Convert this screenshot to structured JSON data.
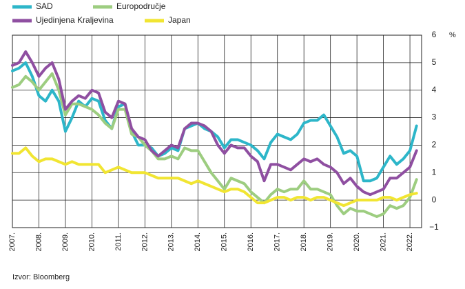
{
  "chart_data": {
    "type": "line",
    "source": "Izvor: Bloomberg",
    "unit": "%",
    "x": [
      2007,
      2007.25,
      2007.5,
      2007.75,
      2008,
      2008.25,
      2008.5,
      2008.75,
      2009,
      2009.25,
      2009.5,
      2009.75,
      2010,
      2010.25,
      2010.5,
      2010.75,
      2011,
      2011.25,
      2011.5,
      2011.75,
      2012,
      2012.25,
      2012.5,
      2012.75,
      2013,
      2013.25,
      2013.5,
      2013.75,
      2014,
      2014.25,
      2014.5,
      2014.75,
      2015,
      2015.25,
      2015.5,
      2015.75,
      2016,
      2016.25,
      2016.5,
      2016.75,
      2017,
      2017.25,
      2017.5,
      2017.75,
      2018,
      2018.25,
      2018.5,
      2018.75,
      2019,
      2019.25,
      2019.5,
      2019.75,
      2020,
      2020.25,
      2020.5,
      2020.75,
      2021,
      2021.25,
      2021.5,
      2021.75,
      2022,
      2022.25
    ],
    "series": [
      {
        "name": "SAD",
        "color": "#2db6c9",
        "values": [
          4.7,
          4.8,
          5.0,
          4.5,
          3.8,
          3.6,
          4.0,
          3.6,
          2.5,
          3.0,
          3.6,
          3.4,
          3.7,
          3.6,
          2.9,
          2.6,
          3.4,
          3.5,
          2.5,
          2.0,
          2.0,
          1.9,
          1.6,
          1.7,
          1.9,
          1.8,
          2.6,
          2.7,
          2.8,
          2.6,
          2.5,
          2.3,
          1.9,
          2.2,
          2.2,
          2.1,
          2.0,
          1.8,
          1.5,
          2.1,
          2.4,
          2.3,
          2.2,
          2.4,
          2.8,
          2.9,
          2.9,
          3.1,
          2.7,
          2.3,
          1.7,
          1.8,
          1.6,
          0.7,
          0.7,
          0.8,
          1.2,
          1.6,
          1.3,
          1.5,
          1.8,
          2.7
        ]
      },
      {
        "name": "Europodručje",
        "color": "#9dcd80",
        "values": [
          4.1,
          4.2,
          4.5,
          4.3,
          4.0,
          4.3,
          4.6,
          4.0,
          3.1,
          3.5,
          3.5,
          3.4,
          3.3,
          3.1,
          2.8,
          2.6,
          3.3,
          3.3,
          2.4,
          2.3,
          2.0,
          1.8,
          1.5,
          1.5,
          1.6,
          1.5,
          1.9,
          1.8,
          1.8,
          1.4,
          1.0,
          0.7,
          0.4,
          0.8,
          0.7,
          0.6,
          0.3,
          0.1,
          -0.1,
          0.2,
          0.4,
          0.3,
          0.4,
          0.4,
          0.7,
          0.4,
          0.4,
          0.3,
          0.2,
          -0.2,
          -0.5,
          -0.3,
          -0.4,
          -0.4,
          -0.5,
          -0.6,
          -0.5,
          -0.2,
          -0.3,
          -0.2,
          0.1,
          0.75
        ]
      },
      {
        "name": "Ujedinjena Kraljevina",
        "color": "#8f4fa1",
        "values": [
          4.9,
          5.0,
          5.4,
          5.0,
          4.5,
          4.8,
          5.0,
          4.4,
          3.3,
          3.6,
          3.8,
          3.7,
          4.0,
          3.9,
          3.2,
          3.0,
          3.6,
          3.5,
          2.6,
          2.3,
          2.2,
          1.8,
          1.6,
          1.8,
          2.0,
          1.9,
          2.6,
          2.8,
          2.8,
          2.7,
          2.5,
          2.0,
          1.7,
          2.0,
          1.9,
          1.9,
          1.6,
          1.4,
          0.7,
          1.3,
          1.3,
          1.2,
          1.1,
          1.3,
          1.5,
          1.4,
          1.5,
          1.3,
          1.2,
          1.0,
          0.6,
          0.8,
          0.5,
          0.3,
          0.2,
          0.3,
          0.4,
          0.8,
          0.8,
          1.0,
          1.2,
          1.8
        ]
      },
      {
        "name": "Japan",
        "color": "#f1e532",
        "values": [
          1.7,
          1.7,
          1.9,
          1.6,
          1.4,
          1.5,
          1.5,
          1.4,
          1.3,
          1.4,
          1.3,
          1.3,
          1.3,
          1.3,
          1.0,
          1.1,
          1.2,
          1.1,
          1.0,
          1.0,
          1.0,
          0.9,
          0.8,
          0.8,
          0.8,
          0.8,
          0.7,
          0.6,
          0.7,
          0.6,
          0.5,
          0.4,
          0.3,
          0.4,
          0.4,
          0.3,
          0.1,
          -0.1,
          -0.1,
          0.0,
          0.1,
          0.1,
          0.0,
          0.1,
          0.1,
          0.0,
          0.1,
          0.1,
          0.0,
          -0.1,
          -0.2,
          -0.1,
          0.0,
          0.0,
          0.0,
          0.0,
          0.1,
          0.1,
          0.0,
          0.1,
          0.2,
          0.25
        ]
      }
    ],
    "xlim": [
      2007,
      2022.44
    ],
    "xticks": [
      {
        "value": 2007,
        "label": "2007."
      },
      {
        "value": 2008,
        "label": "2008."
      },
      {
        "value": 2009,
        "label": "2009."
      },
      {
        "value": 2010,
        "label": "2010."
      },
      {
        "value": 2011,
        "label": "2011."
      },
      {
        "value": 2012,
        "label": "2012."
      },
      {
        "value": 2013,
        "label": "2013."
      },
      {
        "value": 2014,
        "label": "2014."
      },
      {
        "value": 2015,
        "label": "2015."
      },
      {
        "value": 2016,
        "label": "2016."
      },
      {
        "value": 2017,
        "label": "2017."
      },
      {
        "value": 2018,
        "label": "2018."
      },
      {
        "value": 2019,
        "label": "2019."
      },
      {
        "value": 2020,
        "label": "2020."
      },
      {
        "value": 2021,
        "label": "2021."
      },
      {
        "value": 2022,
        "label": "2022."
      }
    ],
    "ylim": [
      -1,
      6
    ],
    "yticks": [
      {
        "value": -1,
        "label": "−1"
      },
      0,
      1,
      2,
      3,
      4,
      5,
      6
    ],
    "grid": true
  }
}
